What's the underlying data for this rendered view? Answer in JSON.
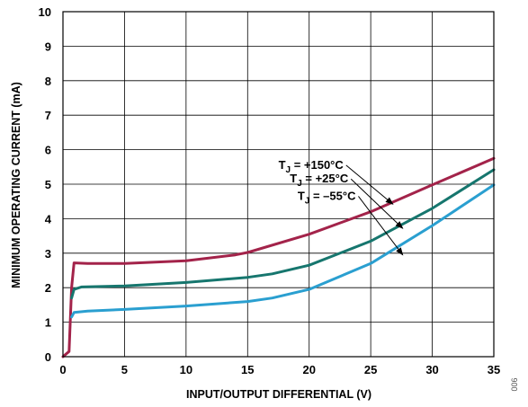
{
  "figure_id": "006",
  "chart_data": {
    "type": "line",
    "title": "",
    "xlabel": "INPUT/OUTPUT DIFFERENTIAL (V)",
    "ylabel": "MINIMUM OPERATING CURRENT (mA)",
    "xlim": [
      0,
      35
    ],
    "ylim": [
      0,
      10
    ],
    "x_ticks": [
      0,
      5,
      10,
      15,
      20,
      25,
      30,
      35
    ],
    "y_ticks": [
      0,
      1,
      2,
      3,
      4,
      5,
      6,
      7,
      8,
      9,
      10
    ],
    "grid": true,
    "legend": "annotations with arrows",
    "series": [
      {
        "name": "+150°C",
        "label_prefix": "T",
        "label_sub": "J",
        "label_rest": " = +150°C",
        "color": "#a3234a",
        "points": [
          [
            0,
            0
          ],
          [
            0.5,
            0.15
          ],
          [
            0.7,
            2.0
          ],
          [
            0.9,
            2.72
          ],
          [
            2,
            2.7
          ],
          [
            5,
            2.7
          ],
          [
            10,
            2.78
          ],
          [
            14,
            2.95
          ],
          [
            15,
            3.02
          ],
          [
            20,
            3.55
          ],
          [
            25,
            4.2
          ],
          [
            30,
            4.98
          ],
          [
            35,
            5.75
          ]
        ]
      },
      {
        "name": "+25°C",
        "label_prefix": "T",
        "label_sub": "J",
        "label_rest": " = +25°C",
        "color": "#16766e",
        "points": [
          [
            0.7,
            1.7
          ],
          [
            0.9,
            1.95
          ],
          [
            1.5,
            2.02
          ],
          [
            5,
            2.05
          ],
          [
            10,
            2.15
          ],
          [
            15,
            2.3
          ],
          [
            17,
            2.4
          ],
          [
            20,
            2.65
          ],
          [
            25,
            3.35
          ],
          [
            30,
            4.3
          ],
          [
            35,
            5.42
          ]
        ]
      },
      {
        "name": "–55°C",
        "label_prefix": "T",
        "label_sub": "J",
        "label_rest": " = –55°C",
        "color": "#2a9fd0",
        "points": [
          [
            0.7,
            1.15
          ],
          [
            0.9,
            1.28
          ],
          [
            2,
            1.32
          ],
          [
            5,
            1.37
          ],
          [
            10,
            1.47
          ],
          [
            15,
            1.6
          ],
          [
            17,
            1.7
          ],
          [
            20,
            1.95
          ],
          [
            25,
            2.7
          ],
          [
            30,
            3.8
          ],
          [
            35,
            4.98
          ]
        ]
      }
    ],
    "arrows": [
      {
        "from": [
          23.0,
          5.55
        ],
        "to": [
          26.8,
          4.42
        ]
      },
      {
        "from": [
          23.4,
          5.15
        ],
        "to": [
          27.6,
          3.72
        ]
      },
      {
        "from": [
          24.0,
          4.65
        ],
        "to": [
          27.6,
          2.95
        ]
      }
    ]
  }
}
